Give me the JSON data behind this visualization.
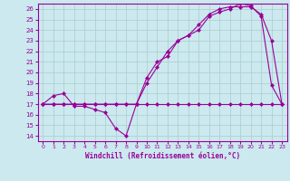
{
  "bg_color": "#cbe9ee",
  "grid_color": "#aacccc",
  "line_color": "#990099",
  "marker": "D",
  "marker_size": 2.0,
  "marker_lw": 0.5,
  "line_width": 0.8,
  "xlim": [
    -0.5,
    23.5
  ],
  "ylim": [
    13.5,
    26.5
  ],
  "xticks": [
    0,
    1,
    2,
    3,
    4,
    5,
    6,
    7,
    8,
    9,
    10,
    11,
    12,
    13,
    14,
    15,
    16,
    17,
    18,
    19,
    20,
    21,
    22,
    23
  ],
  "yticks": [
    14,
    15,
    16,
    17,
    18,
    19,
    20,
    21,
    22,
    23,
    24,
    25,
    26
  ],
  "xlabel": "Windchill (Refroidissement éolien,°C)",
  "series1_x": [
    0,
    1,
    2,
    3,
    4,
    5,
    6,
    7,
    8,
    9,
    10,
    11,
    12,
    13,
    14,
    15,
    16,
    17,
    18,
    19,
    20,
    21,
    22,
    23
  ],
  "series1_y": [
    17.0,
    17.0,
    17.0,
    17.0,
    17.0,
    17.0,
    17.0,
    17.0,
    17.0,
    17.0,
    17.0,
    17.0,
    17.0,
    17.0,
    17.0,
    17.0,
    17.0,
    17.0,
    17.0,
    17.0,
    17.0,
    17.0,
    17.0,
    17.0
  ],
  "series2_x": [
    0,
    1,
    2,
    3,
    4,
    5,
    6,
    7,
    8,
    9,
    10,
    11,
    12,
    13,
    14,
    15,
    16,
    17,
    18,
    19,
    20,
    21,
    22,
    23
  ],
  "series2_y": [
    17.0,
    17.8,
    18.0,
    16.8,
    16.8,
    16.5,
    16.2,
    14.7,
    14.0,
    17.0,
    19.5,
    21.0,
    21.5,
    23.0,
    23.5,
    24.0,
    25.3,
    25.7,
    26.0,
    26.5,
    26.3,
    25.3,
    18.8,
    17.0
  ],
  "series3_x": [
    0,
    1,
    2,
    3,
    4,
    5,
    6,
    7,
    8,
    9,
    10,
    11,
    12,
    13,
    14,
    15,
    16,
    17,
    18,
    19,
    20,
    21,
    22,
    23
  ],
  "series3_y": [
    17.0,
    17.0,
    17.0,
    17.0,
    17.0,
    17.0,
    17.0,
    17.0,
    17.0,
    17.0,
    19.0,
    20.5,
    22.0,
    23.0,
    23.5,
    24.5,
    25.5,
    26.0,
    26.2,
    26.2,
    26.2,
    25.5,
    23.0,
    17.0
  ]
}
